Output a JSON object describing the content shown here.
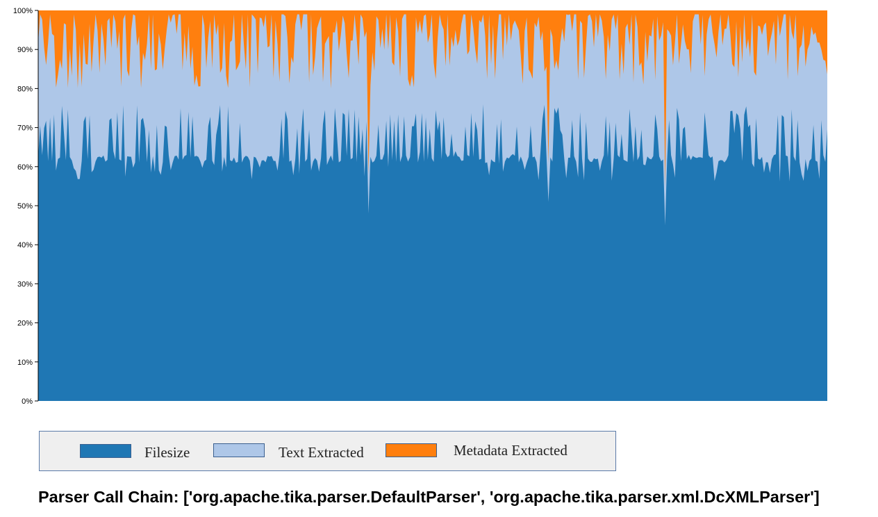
{
  "chart_data": {
    "type": "area",
    "stacked": true,
    "normalized": true,
    "series": [
      {
        "name": "Filesize",
        "color": "#1f77b4"
      },
      {
        "name": "Text Extracted",
        "color": "#aec7e8"
      },
      {
        "name": "Metadata Extracted",
        "color": "#ff7f0e"
      }
    ],
    "y_ticks": [
      "0%",
      "10%",
      "20%",
      "30%",
      "40%",
      "50%",
      "60%",
      "70%",
      "80%",
      "90%",
      "100%"
    ],
    "ylim": [
      0,
      100
    ],
    "grid": false,
    "legend_position": "bottom",
    "sample_count": 400,
    "filesize_baseline_pct": 61,
    "filesize_upper_pct": 76,
    "text_upper_pct": 99,
    "notable_dips": [
      {
        "index": 167,
        "filesize_pct": 48
      },
      {
        "index": 258,
        "filesize_pct": 51
      },
      {
        "index": 317,
        "filesize_pct": 45
      }
    ]
  },
  "legend": {
    "items": [
      {
        "label": "Filesize"
      },
      {
        "label": "Text Extracted"
      },
      {
        "label": "Metadata Extracted"
      }
    ]
  },
  "footer": {
    "title": "Parser Call Chain: ['org.apache.tika.parser.DefaultParser', 'org.apache.tika.parser.xml.DcXMLParser']"
  }
}
